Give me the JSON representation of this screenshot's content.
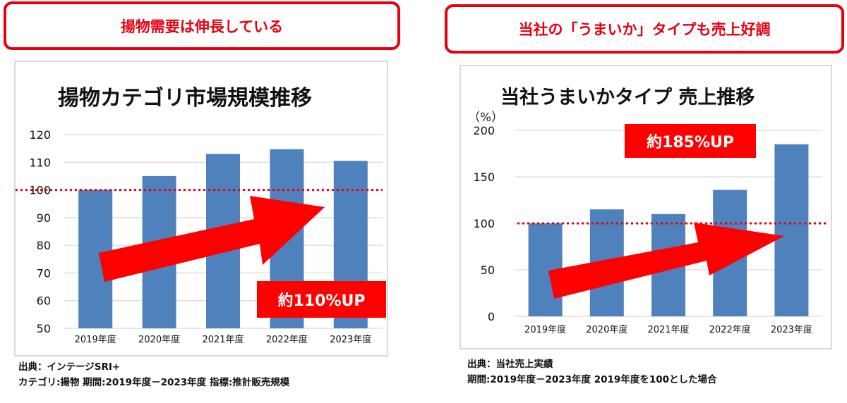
{
  "headlines": {
    "left": "揚物需要は伸長している",
    "right": "当社の「うまいか」タイプも売上好調"
  },
  "chart_data": [
    {
      "type": "bar",
      "title": "揚物カテゴリ市場規模推移",
      "categories": [
        "2019年度",
        "2020年度",
        "2021年度",
        "2022年度",
        "2023年度"
      ],
      "values": [
        100,
        105,
        113,
        114.7,
        110.5
      ],
      "ylim": [
        50,
        120
      ],
      "yticks": [
        50,
        60,
        70,
        80,
        90,
        100,
        110,
        120
      ],
      "reference_line": 100,
      "bar_color": "#4f81bd",
      "annotation": "約110%UP"
    },
    {
      "type": "bar",
      "title": "当社うまいかタイプ 売上推移",
      "ylabel": "（%）",
      "categories": [
        "2019年度",
        "2020年度",
        "2021年度",
        "2022年度",
        "2023年度"
      ],
      "values": [
        100,
        115,
        110,
        136,
        185
      ],
      "ylim": [
        0,
        200
      ],
      "yticks": [
        0,
        50,
        100,
        150,
        200
      ],
      "reference_line": 100,
      "bar_color": "#4f81bd",
      "annotation": "約185%UP"
    }
  ],
  "notes": {
    "left": [
      "出典：インテージSRI+",
      "カテゴリ:揚物 期間:2019年度－2023年度 指標:推計販売規模"
    ],
    "right": [
      "出典：当社売上実績",
      "期間:2019年度－2023年度 2019年度を100とした場合"
    ]
  },
  "colors": {
    "accent": "#e60012",
    "arrow": "#ff0000",
    "bar": "#4f81bd",
    "reference": "#e60012"
  }
}
